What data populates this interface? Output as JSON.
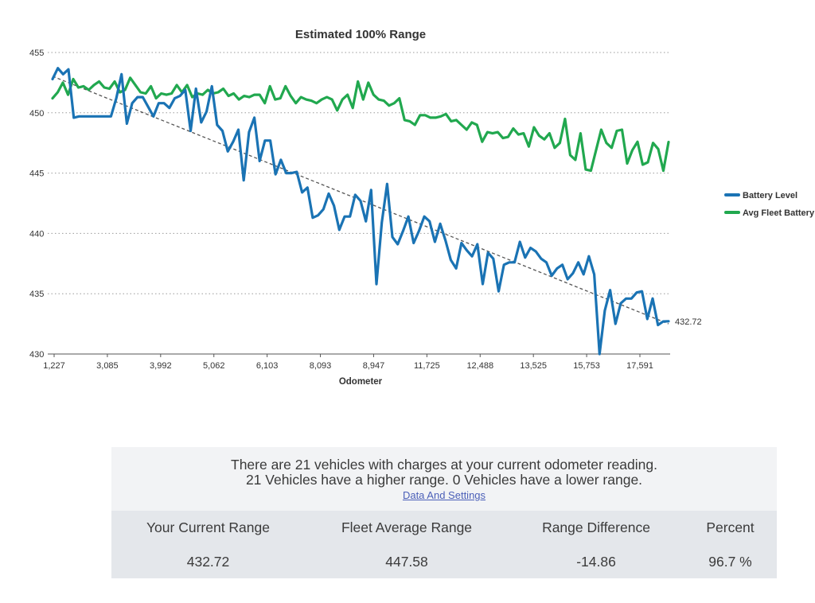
{
  "chart_data": {
    "type": "line",
    "title": "Estimated 100% Range",
    "xlabel": "Odometer",
    "ylabel": "",
    "ylim": [
      430,
      455
    ],
    "yticks": [
      430,
      435,
      440,
      445,
      450,
      455
    ],
    "xtick_labels": [
      "1,227",
      "3,085",
      "3,992",
      "5,062",
      "6,103",
      "8,093",
      "8,947",
      "11,725",
      "12,488",
      "13,525",
      "15,753",
      "17,591"
    ],
    "grid": "horizontal-dotted",
    "legend_position": "right",
    "end_label": "432.72",
    "series": [
      {
        "name": "Battery Level",
        "color": "#1a73b4",
        "values": [
          452.8,
          453.7,
          453.2,
          453.6,
          449.6,
          449.7,
          449.7,
          449.7,
          449.7,
          449.7,
          449.7,
          449.7,
          451.2,
          453.2,
          449.1,
          450.8,
          451.3,
          451.3,
          450.5,
          449.7,
          450.8,
          450.8,
          450.4,
          451.2,
          451.4,
          451.9,
          448.5,
          452.0,
          449.2,
          450.1,
          452.2,
          449.0,
          448.5,
          446.8,
          447.6,
          448.6,
          444.4,
          448.4,
          449.6,
          446.0,
          447.7,
          447.7,
          444.9,
          446.1,
          445.0,
          445.0,
          445.1,
          443.4,
          443.8,
          441.3,
          441.5,
          442.0,
          443.3,
          442.3,
          440.3,
          441.4,
          441.4,
          443.2,
          442.7,
          441.0,
          443.6,
          435.8,
          440.9,
          444.1,
          439.7,
          439.1,
          440.2,
          441.4,
          439.2,
          440.2,
          441.4,
          441.0,
          439.3,
          440.8,
          439.4,
          437.8,
          437.1,
          439.2,
          438.6,
          438.1,
          439.1,
          435.8,
          438.4,
          437.9,
          435.2,
          437.4,
          437.6,
          437.6,
          439.3,
          438.0,
          438.8,
          438.5,
          437.9,
          437.6,
          436.5,
          437.1,
          437.4,
          436.2,
          436.7,
          437.6,
          436.6,
          438.1,
          436.6,
          430.0,
          433.6,
          435.3,
          432.5,
          434.2,
          434.6,
          434.6,
          435.1,
          435.2,
          432.9,
          434.6,
          432.4,
          432.7,
          432.72
        ]
      },
      {
        "name": "Avg Fleet Battery Level",
        "color": "#21a84f",
        "values": [
          451.2,
          451.7,
          452.5,
          451.5,
          452.8,
          452.1,
          452.2,
          451.9,
          452.3,
          452.6,
          452.1,
          452.0,
          452.6,
          451.7,
          451.9,
          452.9,
          452.3,
          451.7,
          451.6,
          452.2,
          451.2,
          451.6,
          451.5,
          451.6,
          452.3,
          451.7,
          452.3,
          451.3,
          451.6,
          451.5,
          451.9,
          451.6,
          451.7,
          452.0,
          451.4,
          451.6,
          451.1,
          451.4,
          451.3,
          451.5,
          451.5,
          450.8,
          452.2,
          451.1,
          451.2,
          452.2,
          451.4,
          450.8,
          451.3,
          451.1,
          451.0,
          450.8,
          451.1,
          451.3,
          451.1,
          450.2,
          451.1,
          451.5,
          450.4,
          452.6,
          451.1,
          452.5,
          451.5,
          451.1,
          451.0,
          450.6,
          450.8,
          451.2,
          449.4,
          449.3,
          449.0,
          449.8,
          449.8,
          449.6,
          449.6,
          449.7,
          449.9,
          449.3,
          449.4,
          449.0,
          448.6,
          449.2,
          449.0,
          447.6,
          448.4,
          448.3,
          448.4,
          447.9,
          448.0,
          448.7,
          448.2,
          448.3,
          447.2,
          448.8,
          448.1,
          447.8,
          448.3,
          447.1,
          447.5,
          449.5,
          446.5,
          446.1,
          448.3,
          445.3,
          445.2,
          446.9,
          448.6,
          447.5,
          447.1,
          448.5,
          448.6,
          445.8,
          446.9,
          447.6,
          445.7,
          445.9,
          447.5,
          447.0,
          445.2,
          447.58
        ]
      }
    ]
  },
  "summary": {
    "line1": "There are 21 vehicles with charges at your current odometer reading.",
    "line2": "21 Vehicles have a higher range. 0 Vehicles have a lower range.",
    "link": "Data And Settings"
  },
  "stats": [
    {
      "label": "Your Current Range",
      "value": "432.72"
    },
    {
      "label": "Fleet Average Range",
      "value": "447.58"
    },
    {
      "label": "Range Difference",
      "value": "-14.86"
    },
    {
      "label": "Percent",
      "value": "96.7 %"
    }
  ]
}
